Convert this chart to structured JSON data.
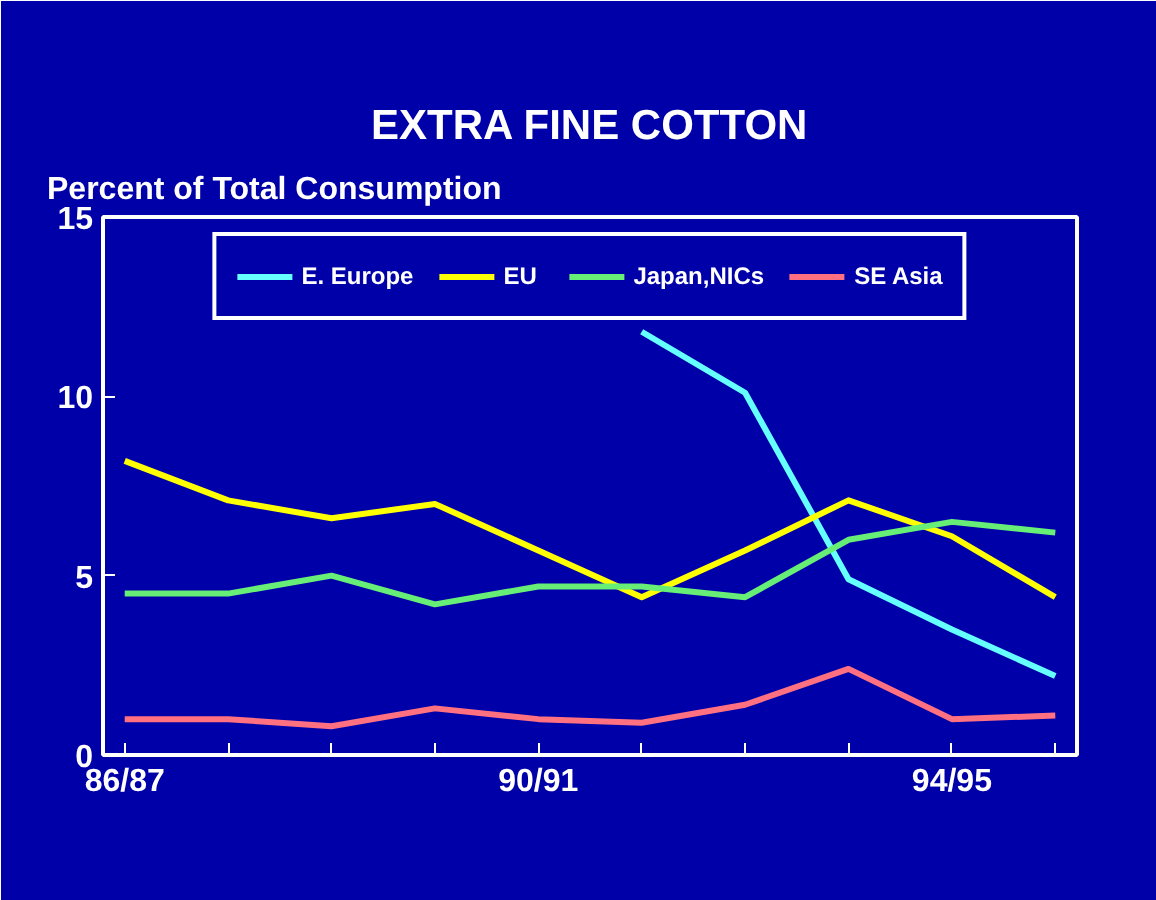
{
  "chart_data": {
    "type": "line",
    "title": "EXTRA FINE COTTON",
    "ylabel": "Percent of Total Consumption",
    "categories": [
      "86/87",
      null,
      null,
      null,
      "90/91",
      null,
      null,
      null,
      "94/95",
      null
    ],
    "ylim": [
      0,
      15
    ],
    "yticks": [
      0,
      5,
      10,
      15
    ],
    "legend": "top",
    "series": [
      {
        "name": "E. Europe",
        "color": "#66ffff",
        "values": [
          null,
          null,
          null,
          null,
          null,
          11.8,
          10.1,
          4.9,
          3.5,
          2.2
        ]
      },
      {
        "name": "EU",
        "color": "#ffff00",
        "values": [
          8.2,
          7.1,
          6.6,
          7.0,
          5.7,
          4.4,
          5.7,
          7.1,
          6.1,
          4.4
        ]
      },
      {
        "name": "Japan,NICs",
        "color": "#66ee77",
        "values": [
          4.5,
          4.5,
          5.0,
          4.2,
          4.7,
          4.7,
          4.4,
          6.0,
          6.5,
          6.2
        ]
      },
      {
        "name": "SE Asia",
        "color": "#ff7080",
        "values": [
          1.0,
          1.0,
          0.8,
          1.3,
          1.0,
          0.9,
          1.4,
          2.4,
          1.0,
          1.1
        ]
      }
    ]
  }
}
